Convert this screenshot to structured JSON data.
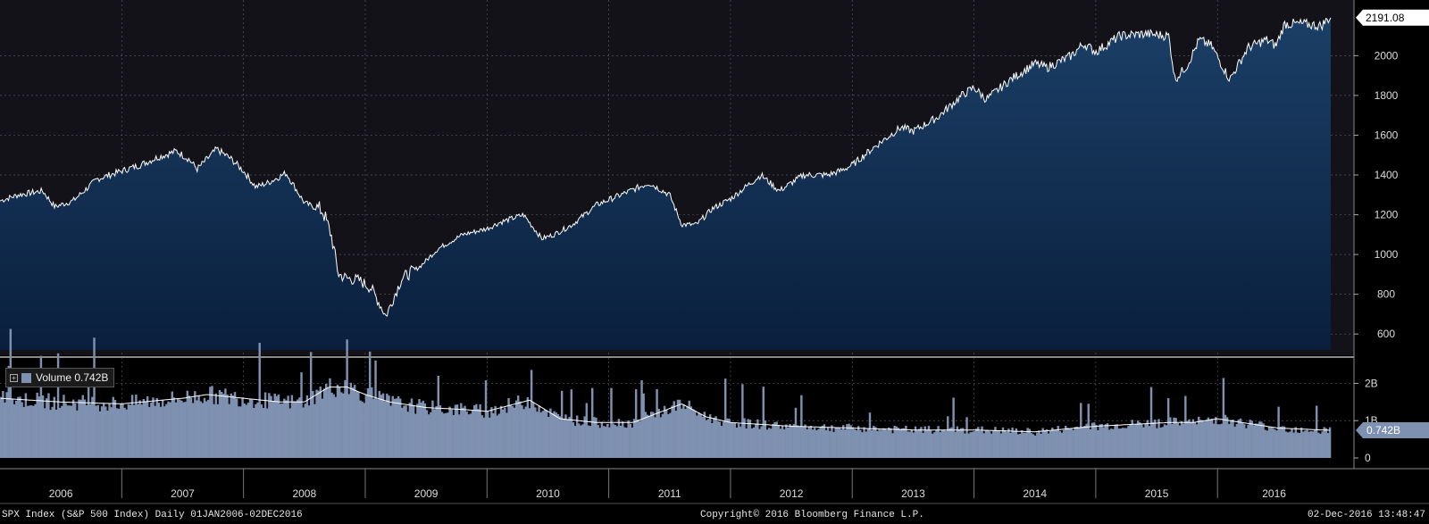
{
  "colors": {
    "background": "#000000",
    "plot_bg": "#121218",
    "price_fill_top": "#1b3f66",
    "price_fill_bottom": "#0a1f3d",
    "price_line": "#ffffff",
    "volume_fill": "#7f91b0",
    "volume_avg_line": "#ffffff",
    "grid": "#55555f",
    "axis_text": "#dddddd"
  },
  "footer": {
    "left": "SPX Index (S&P 500 Index)  Daily 01JAN2006-02DEC2016",
    "center": "Copyright© 2016 Bloomberg Finance L.P.",
    "right": "02-Dec-2016 13:48:47"
  },
  "legend": {
    "expand_icon": "+",
    "label": "Volume 0.742B"
  },
  "chart_data": [
    {
      "type": "area",
      "series": [
        {
          "name": "SPX Index",
          "x": [
            2006.0,
            2006.15,
            2006.35,
            2006.45,
            2006.6,
            2006.8,
            2007.0,
            2007.15,
            2007.3,
            2007.45,
            2007.55,
            2007.62,
            2007.78,
            2007.9,
            2008.0,
            2008.1,
            2008.2,
            2008.35,
            2008.5,
            2008.65,
            2008.72,
            2008.78,
            2008.85,
            2008.95,
            2009.05,
            2009.17,
            2009.3,
            2009.45,
            2009.6,
            2009.8,
            2010.0,
            2010.1,
            2010.3,
            2010.45,
            2010.55,
            2010.7,
            2010.9,
            2011.1,
            2011.33,
            2011.5,
            2011.6,
            2011.72,
            2011.85,
            2012.0,
            2012.25,
            2012.4,
            2012.6,
            2012.8,
            2012.9,
            2013.0,
            2013.2,
            2013.4,
            2013.5,
            2013.7,
            2013.9,
            2014.0,
            2014.1,
            2014.3,
            2014.5,
            2014.6,
            2014.8,
            2014.9,
            2015.0,
            2015.2,
            2015.4,
            2015.6,
            2015.65,
            2015.75,
            2015.85,
            2015.95,
            2016.1,
            2016.25,
            2016.4,
            2016.48,
            2016.55,
            2016.7,
            2016.85,
            2016.92
          ],
          "y": [
            1270,
            1300,
            1320,
            1240,
            1270,
            1380,
            1420,
            1450,
            1490,
            1520,
            1480,
            1430,
            1530,
            1480,
            1420,
            1340,
            1360,
            1410,
            1260,
            1220,
            1100,
            900,
            880,
            870,
            830,
            690,
            880,
            940,
            1030,
            1100,
            1130,
            1160,
            1200,
            1080,
            1100,
            1150,
            1250,
            1300,
            1360,
            1300,
            1150,
            1150,
            1230,
            1280,
            1400,
            1320,
            1400,
            1400,
            1420,
            1450,
            1550,
            1640,
            1620,
            1690,
            1800,
            1840,
            1780,
            1880,
            1960,
            1940,
            2000,
            2060,
            2020,
            2100,
            2110,
            2100,
            1880,
            1950,
            2080,
            2050,
            1880,
            2040,
            2080,
            2050,
            2160,
            2160,
            2150,
            2191.08
          ],
          "last_value_label": "2191.08"
        }
      ],
      "x_range": [
        2006.0,
        2016.93
      ],
      "ylim": [
        520,
        2280
      ],
      "y_ticks": [
        600,
        800,
        1000,
        1200,
        1400,
        1600,
        1800,
        2000
      ],
      "x_tick_labels": [
        "2006",
        "2007",
        "2008",
        "2009",
        "2010",
        "2011",
        "2012",
        "2013",
        "2014",
        "2015",
        "2016"
      ],
      "grid": true
    },
    {
      "type": "bar",
      "series": [
        {
          "name": "Volume",
          "x": [
            2006.0,
            2006.5,
            2007.0,
            2007.5,
            2007.7,
            2008.0,
            2008.3,
            2008.5,
            2008.7,
            2008.85,
            2009.0,
            2009.2,
            2009.5,
            2009.8,
            2010.0,
            2010.35,
            2010.6,
            2010.9,
            2011.2,
            2011.6,
            2011.8,
            2012.0,
            2012.5,
            2013.0,
            2013.5,
            2014.0,
            2014.5,
            2015.0,
            2015.6,
            2015.8,
            2016.0,
            2016.5,
            2016.92
          ],
          "y": [
            1.6,
            1.5,
            1.45,
            1.6,
            1.7,
            1.6,
            1.5,
            1.5,
            1.9,
            1.9,
            1.7,
            1.5,
            1.35,
            1.3,
            1.25,
            1.55,
            1.05,
            0.95,
            0.95,
            1.45,
            1.1,
            0.95,
            0.85,
            0.8,
            0.75,
            0.75,
            0.7,
            0.85,
            0.95,
            0.95,
            1.05,
            0.8,
            0.742
          ]
        }
      ],
      "x_range": [
        2006.0,
        2016.93
      ],
      "ylim": [
        0,
        2.8
      ],
      "y_ticks": [
        0,
        1,
        2
      ],
      "y_tick_labels": [
        "0",
        "1B",
        "2B"
      ],
      "last_value_label": "0.742B",
      "grid": true
    }
  ]
}
